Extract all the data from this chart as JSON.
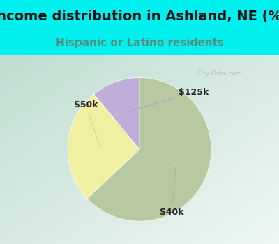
{
  "title": "Income distribution in Ashland, NE (%)",
  "subtitle": "Hispanic or Latino residents",
  "slices": [
    {
      "label": "$125k",
      "value": 11,
      "color": "#c0aed8",
      "line_color": "#b0a0cc"
    },
    {
      "label": "$50k",
      "value": 26,
      "color": "#f0f0a0",
      "line_color": "#d8d870"
    },
    {
      "label": "$40k",
      "value": 63,
      "color": "#b8c8a0",
      "line_color": "#a8b890"
    }
  ],
  "title_color": "#111111",
  "subtitle_color": "#5a8a7a",
  "top_bg_color": "#00f0f0",
  "chart_bg_left": "#c0ddd0",
  "chart_bg_right": "#e8f4f0",
  "watermark": "City-Data.com",
  "label_fontsize": 9,
  "title_fontsize": 14,
  "subtitle_fontsize": 11,
  "startangle": 90,
  "label_text_color": "#222222",
  "label_positions": {
    "$125k": [
      0.75,
      0.8
    ],
    "$50k": [
      -0.75,
      0.62
    ],
    "$40k": [
      0.45,
      -0.88
    ]
  }
}
